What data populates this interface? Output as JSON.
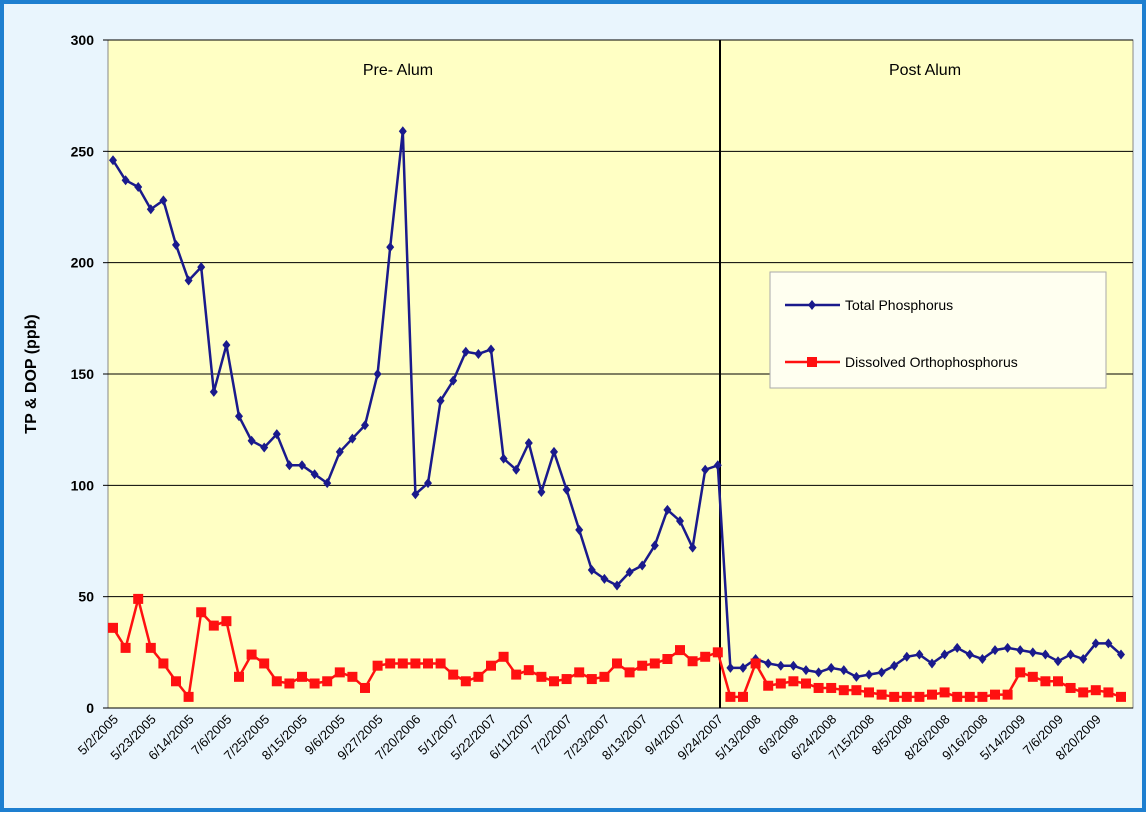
{
  "chart_data": {
    "type": "line",
    "ylabel": "TP & DOP (ppb)",
    "annotations": [
      "Pre- Alum",
      "Post Alum"
    ],
    "categories": [
      "5/2/2005",
      null,
      null,
      "5/23/2005",
      null,
      null,
      "6/14/2005",
      null,
      null,
      "7/6/2005",
      null,
      null,
      "7/25/2005",
      null,
      null,
      "8/15/2005",
      null,
      null,
      "9/6/2005",
      null,
      null,
      "9/27/2005",
      null,
      null,
      "7/20/2006",
      null,
      null,
      "5/1/2007",
      null,
      null,
      "5/22/2007",
      null,
      null,
      "6/11/2007",
      null,
      null,
      "7/2/2007",
      null,
      null,
      "7/23/2007",
      null,
      null,
      "8/13/2007",
      null,
      null,
      "9/4/2007",
      null,
      null,
      "9/24/2007",
      null,
      null,
      "5/13/2008",
      null,
      null,
      "6/3/2008",
      null,
      null,
      "6/24/2008",
      null,
      null,
      "7/15/2008",
      null,
      null,
      "8/5/2008",
      null,
      null,
      "8/26/2008",
      null,
      null,
      "9/16/2008",
      null,
      null,
      "5/14/2009",
      null,
      null,
      "7/6/2009",
      null,
      null,
      "8/20/2009",
      null,
      null
    ],
    "series": [
      {
        "name": "Total Phosphorus",
        "color": "#1a1a8c",
        "marker": "diamond",
        "values": [
          246,
          237,
          234,
          224,
          228,
          208,
          192,
          198,
          142,
          163,
          131,
          120,
          117,
          123,
          109,
          109,
          105,
          101,
          115,
          121,
          127,
          150,
          207,
          259,
          96,
          101,
          138,
          147,
          160,
          159,
          161,
          112,
          107,
          119,
          97,
          115,
          98,
          80,
          62,
          58,
          55,
          61,
          64,
          73,
          89,
          84,
          72,
          107,
          109,
          18,
          18,
          22,
          20,
          19,
          19,
          17,
          16,
          18,
          17,
          14,
          15,
          16,
          19,
          23,
          24,
          20,
          24,
          27,
          24,
          22,
          26,
          27,
          26,
          25,
          24,
          21,
          24,
          22,
          29,
          29,
          24
        ]
      },
      {
        "name": "Dissolved Orthophosphorus",
        "color": "#ff1010",
        "marker": "square",
        "values": [
          36,
          27,
          49,
          27,
          20,
          12,
          5,
          43,
          37,
          39,
          14,
          24,
          20,
          12,
          11,
          14,
          11,
          12,
          16,
          14,
          9,
          19,
          20,
          20,
          20,
          20,
          20,
          15,
          12,
          14,
          19,
          23,
          15,
          17,
          14,
          12,
          13,
          16,
          13,
          14,
          20,
          16,
          19,
          20,
          22,
          26,
          21,
          23,
          25,
          5,
          5,
          20,
          10,
          11,
          12,
          11,
          9,
          9,
          8,
          8,
          7,
          6,
          5,
          5,
          5,
          6,
          7,
          5,
          5,
          5,
          6,
          6,
          16,
          14,
          12,
          12,
          9,
          7,
          8,
          7,
          5
        ]
      }
    ],
    "ylim": [
      0,
      300
    ],
    "yticks": [
      0,
      50,
      100,
      150,
      200,
      250,
      300
    ],
    "grid": true
  }
}
